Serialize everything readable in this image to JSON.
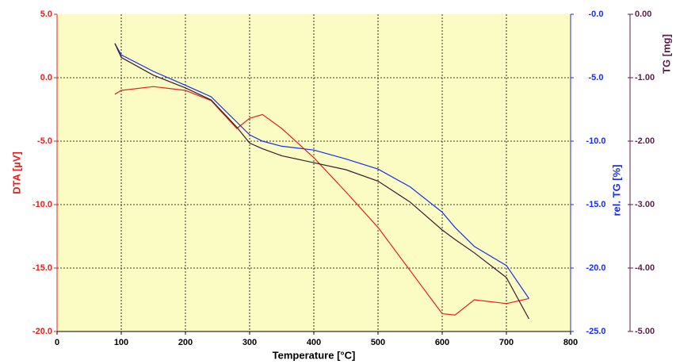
{
  "chart_data": {
    "type": "line",
    "xlabel": "Temperature  [°C]",
    "ylabel": "DTA  [µV]",
    "y2label": "rel. TG  [%]",
    "y3label": "TG  [mg]",
    "xlim": [
      0,
      800
    ],
    "xticks": [
      0,
      100,
      200,
      300,
      400,
      500,
      600,
      700,
      800
    ],
    "ylim": [
      -20,
      5
    ],
    "yticks": [
      {
        "value": -20,
        "label": "-20.0"
      },
      {
        "value": -15,
        "label": "-15.0"
      },
      {
        "value": -10,
        "label": "-10.0"
      },
      {
        "value": -5,
        "label": "-5.0"
      },
      {
        "value": 0,
        "label": "0.0"
      },
      {
        "value": 5,
        "label": "5.0"
      }
    ],
    "y2lim": [
      -25,
      0
    ],
    "y2ticks": [
      {
        "value": -25,
        "label": "-25.0"
      },
      {
        "value": -20,
        "label": "-20.0"
      },
      {
        "value": -15,
        "label": "-15.0"
      },
      {
        "value": -10,
        "label": "-10.0"
      },
      {
        "value": -5,
        "label": "-5.0"
      },
      {
        "value": 0,
        "label": "-0.0"
      }
    ],
    "y3lim": [
      -5,
      0
    ],
    "y3ticks": [
      {
        "value": -5,
        "label": "-5.00"
      },
      {
        "value": -4,
        "label": "-4.00"
      },
      {
        "value": -3,
        "label": "-3.00"
      },
      {
        "value": -2,
        "label": "-2.00"
      },
      {
        "value": -1,
        "label": "-1.00"
      },
      {
        "value": 0,
        "label": "0.00"
      }
    ],
    "grid": true,
    "background": "#fbfbc4",
    "ycolor": "#e8201c",
    "y2color": "#1a2ee8",
    "y3color": "#5a1e4c",
    "x": [
      90,
      100,
      150,
      200,
      240,
      280,
      300,
      320,
      350,
      400,
      450,
      500,
      550,
      600,
      620,
      650,
      700,
      735
    ],
    "series": [
      {
        "name": "DTA",
        "color": "#e8201c",
        "axis": "y",
        "values": [
          -1.3,
          -1.0,
          -0.7,
          -1.0,
          -1.8,
          -4.0,
          -3.2,
          -2.9,
          -4.0,
          -6.3,
          -9.0,
          -11.8,
          -15.2,
          -18.6,
          -18.7,
          -17.5,
          -17.8,
          -17.4
        ]
      },
      {
        "name": "rel. TG",
        "color": "#1a2ee8",
        "axis": "y2",
        "values": [
          -2.3,
          -3.2,
          -4.5,
          -5.6,
          -6.5,
          -8.5,
          -9.5,
          -10.0,
          -10.4,
          -10.7,
          -11.4,
          -12.2,
          -13.6,
          -15.6,
          -16.8,
          -18.3,
          -19.8,
          -22.4
        ]
      },
      {
        "name": "TG",
        "color": "#3a1a30",
        "axis": "y3",
        "values": [
          -0.46,
          -0.68,
          -0.96,
          -1.16,
          -1.35,
          -1.78,
          -2.03,
          -2.12,
          -2.23,
          -2.34,
          -2.45,
          -2.63,
          -2.96,
          -3.4,
          -3.55,
          -3.76,
          -4.15,
          -4.8
        ]
      }
    ]
  }
}
